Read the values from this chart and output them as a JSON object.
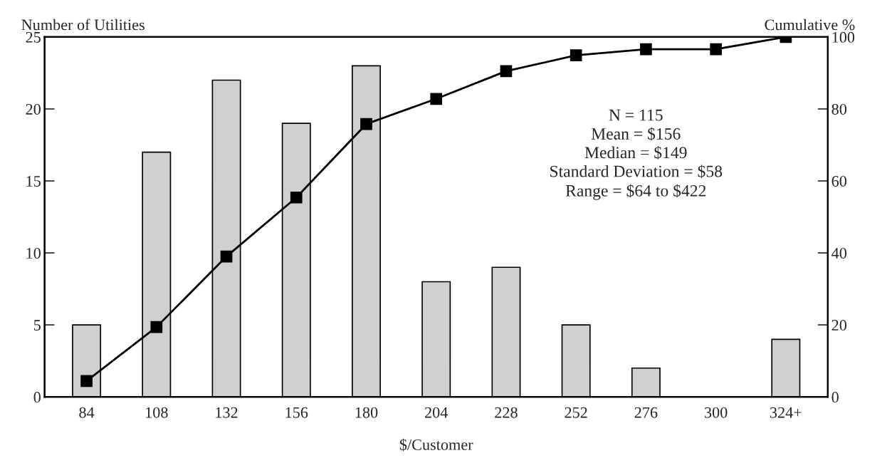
{
  "chart_data": {
    "type": "bar",
    "xlabel": "$/Customer",
    "ylabel": "Number of Utilities",
    "y2label": "Cumulative %",
    "categories": [
      "84",
      "108",
      "132",
      "156",
      "180",
      "204",
      "228",
      "252",
      "276",
      "300",
      "324+"
    ],
    "series": [
      {
        "color": "#d0d0d0",
        "values": [
          5,
          17,
          22,
          19,
          23,
          8,
          9,
          5,
          2,
          0,
          4
        ]
      },
      {
        "type": "line",
        "axis": "y2",
        "color": "#000000",
        "marker": "square",
        "line_style": "solid",
        "values": [
          4.4,
          19.4,
          39,
          55.4,
          75.8,
          82.8,
          90.5,
          94.9,
          96.6,
          96.6,
          100
        ]
      }
    ],
    "ylim": [
      0,
      25
    ],
    "yticks": [
      0,
      5,
      10,
      15,
      20,
      25
    ],
    "y2lim": [
      0,
      100
    ],
    "y2ticks": [
      0,
      20,
      40,
      60,
      80,
      100
    ],
    "grid": false,
    "legend": false,
    "annotations": [
      "N = 115\nMean = $156\nMedian = $149\nStandard Deviation = $58\nRange = $64 to $422"
    ]
  }
}
